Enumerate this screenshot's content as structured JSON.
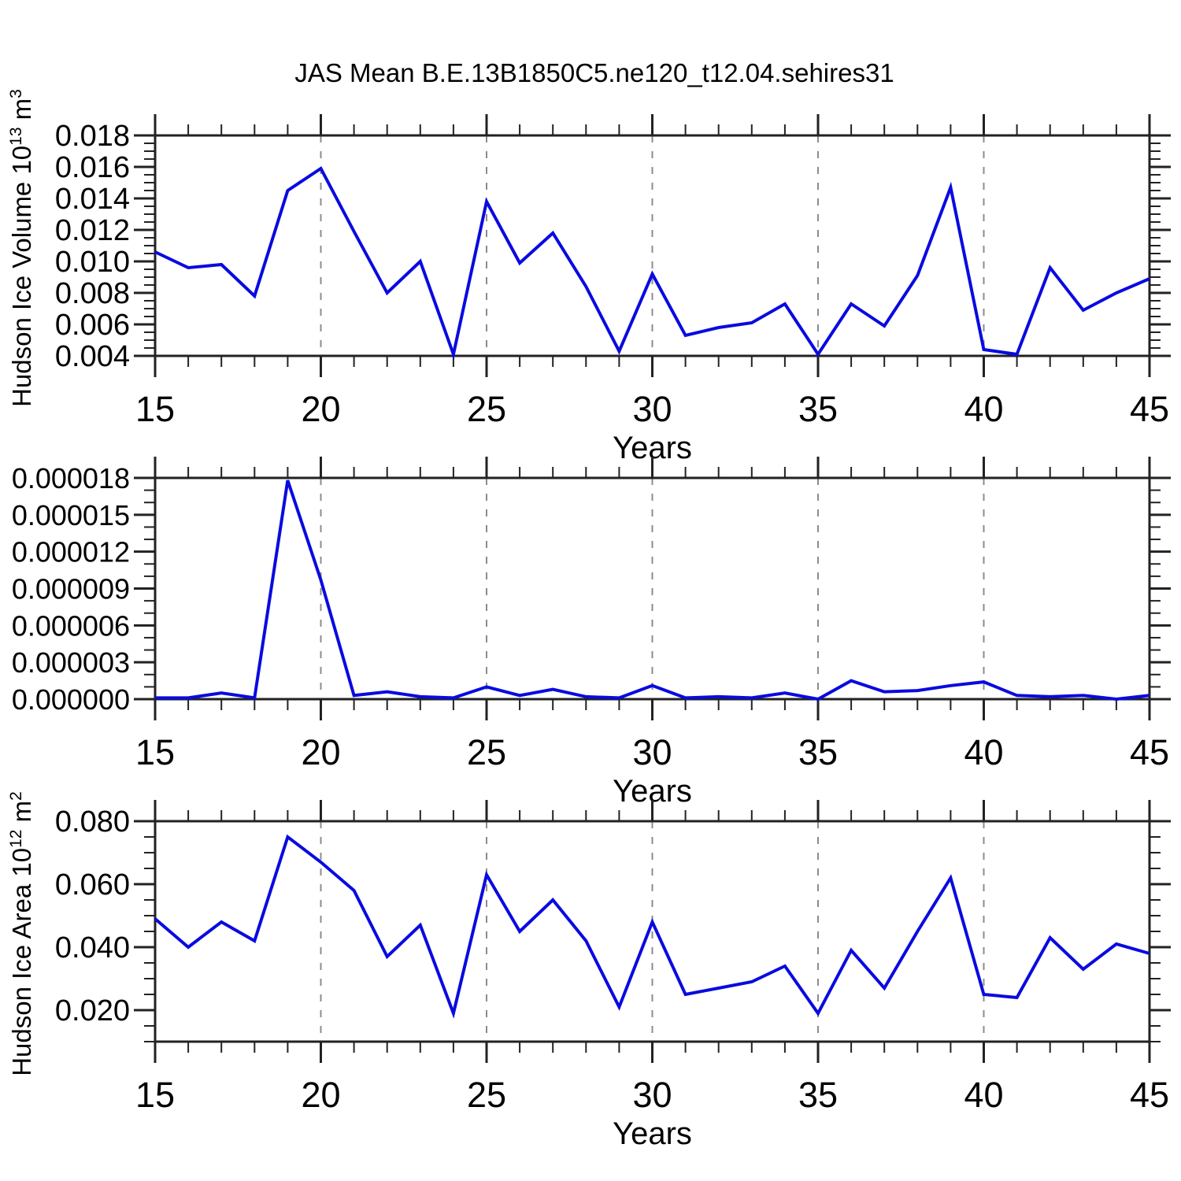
{
  "figure": {
    "title": "JAS Mean B.E.13B1850C5.ne120_t12.04.sehires31",
    "line_color": "#0a0ae0",
    "axis_color": "#222222",
    "grid_color": "#8c8c8c"
  },
  "ylabels": {
    "volume": {
      "text": "Hudson Ice Volume 10",
      "exp": "13",
      "unit": " m",
      "unit_exp": "3"
    },
    "area": {
      "text": "Hudson Ice Area 10",
      "exp": "12",
      "unit": " m",
      "unit_exp": "2"
    }
  },
  "chart_data": [
    {
      "type": "line",
      "name": "hudson-ice-volume",
      "xlabel": "Years",
      "ylabel": "Hudson Ice Volume 10^13 m^3",
      "xlim": [
        15,
        45
      ],
      "ylim": [
        0.004,
        0.018
      ],
      "x": [
        15,
        16,
        17,
        18,
        19,
        20,
        21,
        22,
        23,
        24,
        25,
        26,
        27,
        28,
        29,
        30,
        31,
        32,
        33,
        34,
        35,
        36,
        37,
        38,
        39,
        40,
        41,
        42,
        43,
        44,
        45
      ],
      "values": [
        0.0106,
        0.0096,
        0.0098,
        0.0078,
        0.0145,
        0.0159,
        0.0119,
        0.008,
        0.01,
        0.0041,
        0.0138,
        0.0099,
        0.0118,
        0.0084,
        0.0043,
        0.0092,
        0.0053,
        0.0058,
        0.0061,
        0.0073,
        0.0041,
        0.0073,
        0.0059,
        0.0091,
        0.0147,
        0.0044,
        0.0041,
        0.0096,
        0.0069,
        0.008,
        0.0089
      ],
      "xticks_major": [
        15,
        20,
        25,
        30,
        35,
        40,
        45
      ],
      "xtick_labels": [
        "15",
        "20",
        "25",
        "30",
        "35",
        "40",
        "45"
      ],
      "x_minor_step": 1,
      "yticks_major": [
        0.004,
        0.006,
        0.008,
        0.01,
        0.012,
        0.014,
        0.016,
        0.018
      ],
      "ytick_labels": [
        "0.004",
        "0.006",
        "0.008",
        "0.010",
        "0.012",
        "0.014",
        "0.016",
        "0.018"
      ],
      "y_minor_step": 0.0005,
      "gridline_x": [
        20,
        25,
        30,
        35,
        40
      ],
      "grid": "vertical-dashed",
      "legend": "none"
    },
    {
      "type": "line",
      "name": "hudson-ice-middle",
      "xlabel": "Years",
      "ylabel": "",
      "xlim": [
        15,
        45
      ],
      "ylim": [
        0.0,
        1.8e-05
      ],
      "x": [
        15,
        16,
        17,
        18,
        19,
        20,
        21,
        22,
        23,
        24,
        25,
        26,
        27,
        28,
        29,
        30,
        31,
        32,
        33,
        34,
        35,
        36,
        37,
        38,
        39,
        40,
        41,
        42,
        43,
        44,
        45
      ],
      "values": [
        1e-07,
        1e-07,
        5e-07,
        1e-07,
        1.78e-05,
        9.7e-06,
        3e-07,
        6e-07,
        2e-07,
        1e-07,
        1e-06,
        3e-07,
        8e-07,
        2e-07,
        1e-07,
        1.1e-06,
        1e-07,
        2e-07,
        1e-07,
        5e-07,
        0.0,
        1.5e-06,
        6e-07,
        7e-07,
        1.1e-06,
        1.4e-06,
        3e-07,
        2e-07,
        3e-07,
        0.0,
        3e-07
      ],
      "xticks_major": [
        15,
        20,
        25,
        30,
        35,
        40,
        45
      ],
      "xtick_labels": [
        "15",
        "20",
        "25",
        "30",
        "35",
        "40",
        "45"
      ],
      "x_minor_step": 1,
      "yticks_major": [
        0.0,
        3e-06,
        6e-06,
        9e-06,
        1.2e-05,
        1.5e-05,
        1.8e-05
      ],
      "ytick_labels": [
        "0.000000",
        "0.000003",
        "0.000006",
        "0.000009",
        "0.000012",
        "0.000015",
        "0.000018"
      ],
      "y_minor_step": 1e-06,
      "gridline_x": [
        20,
        25,
        30,
        35,
        40
      ],
      "grid": "vertical-dashed",
      "legend": "none"
    },
    {
      "type": "line",
      "name": "hudson-ice-area",
      "xlabel": "Years",
      "ylabel": "Hudson Ice Area 10^12 m^2",
      "xlim": [
        15,
        45
      ],
      "ylim": [
        0.01,
        0.08
      ],
      "x": [
        15,
        16,
        17,
        18,
        19,
        20,
        21,
        22,
        23,
        24,
        25,
        26,
        27,
        28,
        29,
        30,
        31,
        32,
        33,
        34,
        35,
        36,
        37,
        38,
        39,
        40,
        41,
        42,
        43,
        44,
        45
      ],
      "values": [
        0.049,
        0.04,
        0.048,
        0.042,
        0.075,
        0.067,
        0.058,
        0.037,
        0.047,
        0.019,
        0.063,
        0.045,
        0.055,
        0.042,
        0.021,
        0.048,
        0.025,
        0.027,
        0.029,
        0.034,
        0.019,
        0.039,
        0.027,
        0.045,
        0.062,
        0.025,
        0.024,
        0.043,
        0.033,
        0.041,
        0.038
      ],
      "xticks_major": [
        15,
        20,
        25,
        30,
        35,
        40,
        45
      ],
      "xtick_labels": [
        "15",
        "20",
        "25",
        "30",
        "35",
        "40",
        "45"
      ],
      "x_minor_step": 1,
      "yticks_major": [
        0.02,
        0.04,
        0.06,
        0.08
      ],
      "ytick_labels": [
        "0.020",
        "0.040",
        "0.060",
        "0.080"
      ],
      "y_minor_step": 0.005,
      "gridline_x": [
        20,
        25,
        30,
        35,
        40
      ],
      "grid": "vertical-dashed",
      "legend": "none"
    }
  ]
}
